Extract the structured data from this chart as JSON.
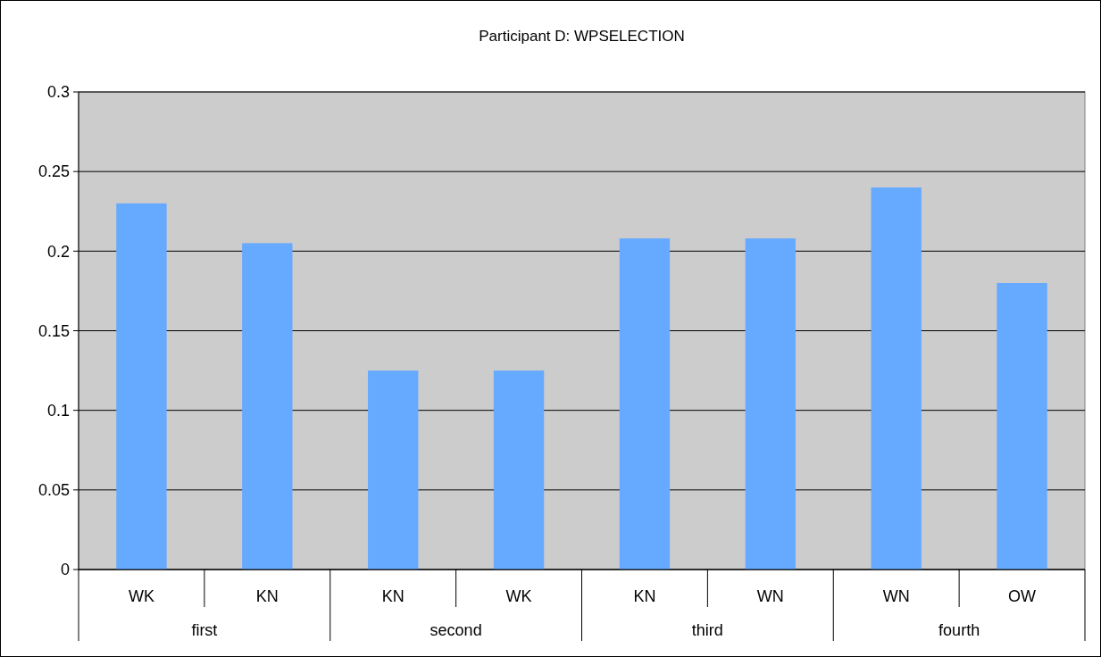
{
  "chart_data": {
    "type": "bar",
    "title": "Participant D: WPSELECTION",
    "categories": [
      "WK",
      "KN",
      "KN",
      "WK",
      "KN",
      "WN",
      "WN",
      "OW"
    ],
    "values": [
      0.23,
      0.205,
      0.125,
      0.125,
      0.208,
      0.208,
      0.24,
      0.18
    ],
    "color": "#66aaff",
    "ylim": [
      0,
      0.3
    ],
    "yticks": [
      0,
      0.05,
      0.1,
      0.15,
      0.2,
      0.25,
      0.3
    ],
    "grid": "y",
    "annotations": [
      "first",
      "second",
      "third",
      "fourth"
    ]
  }
}
